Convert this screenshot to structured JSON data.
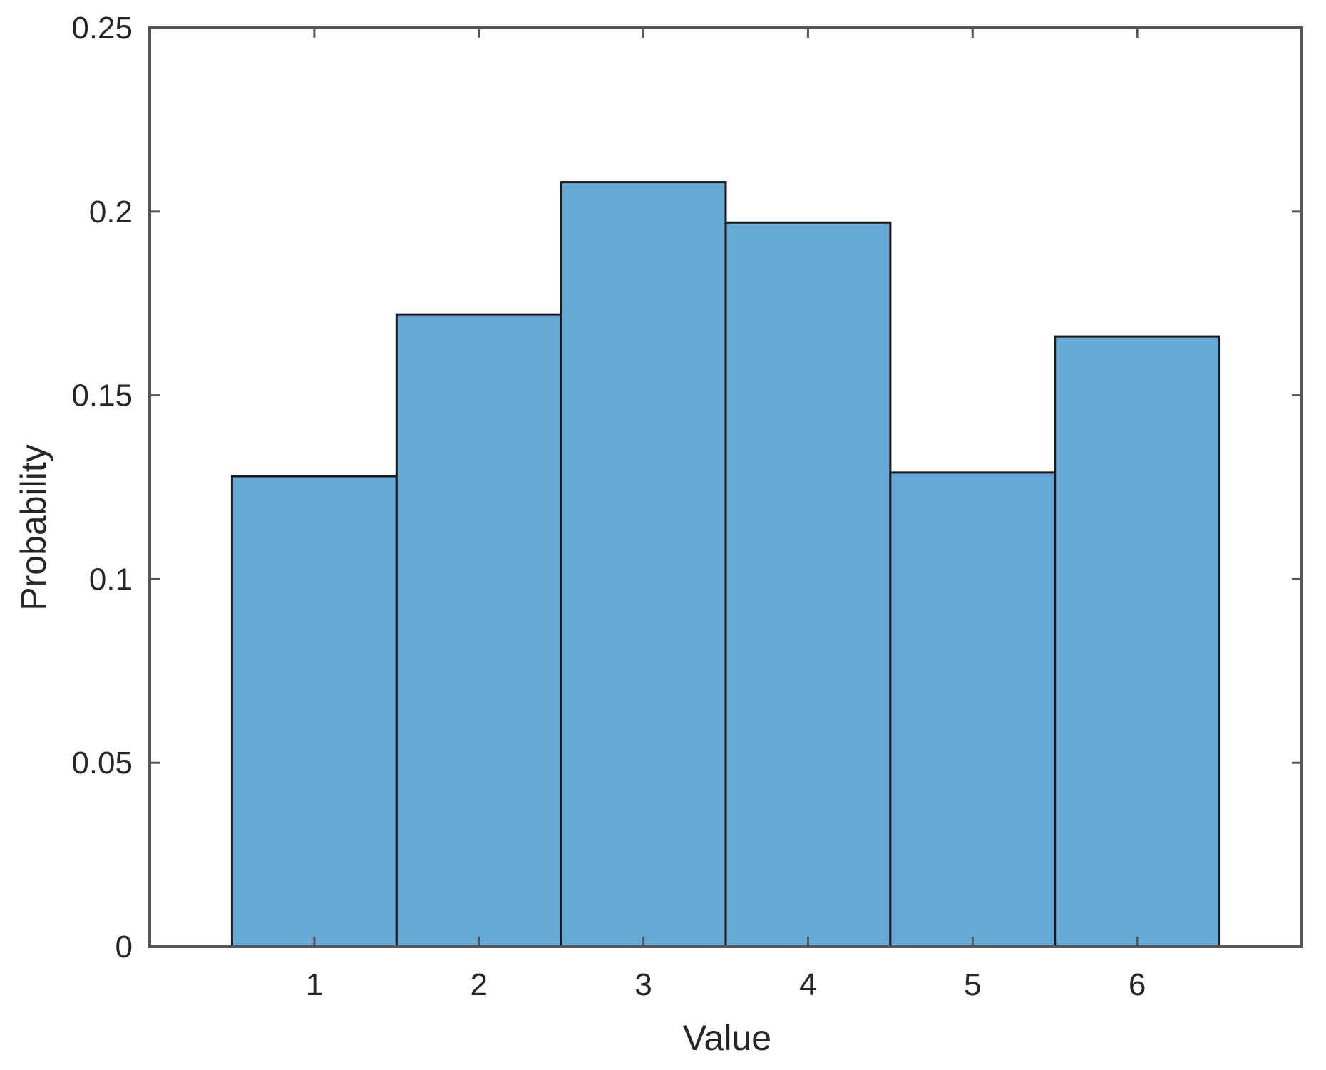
{
  "chart_data": {
    "type": "bar",
    "histogram": true,
    "title": "",
    "xlabel": "Value",
    "ylabel": "Probability",
    "categories": [
      "1",
      "2",
      "3",
      "4",
      "5",
      "6"
    ],
    "x": [
      1,
      2,
      3,
      4,
      5,
      6
    ],
    "values": [
      0.128,
      0.172,
      0.208,
      0.197,
      0.129,
      0.166
    ],
    "xlim": [
      0,
      7
    ],
    "ylim": [
      0,
      0.25
    ],
    "yticks": [
      0,
      0.05,
      0.1,
      0.15,
      0.2,
      0.25
    ],
    "ytick_labels": [
      "0",
      "0.05",
      "0.1",
      "0.15",
      "0.2",
      "0.25"
    ],
    "xticks": [
      1,
      2,
      3,
      4,
      5,
      6
    ],
    "xtick_labels": [
      "1",
      "2",
      "3",
      "4",
      "5",
      "6"
    ],
    "grid": false,
    "legend": "none",
    "colors": {
      "bar_fill": "#66a8d6",
      "bar_edge": "#1a1a1a",
      "axes": "#555555",
      "text": "#262626",
      "background": "#ffffff"
    }
  }
}
